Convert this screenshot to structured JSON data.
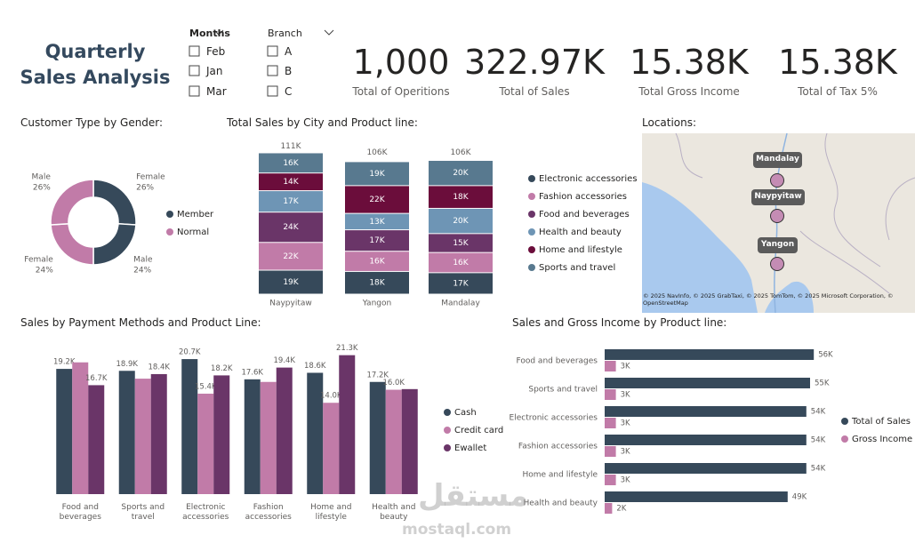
{
  "header": {
    "title": "Quarterly Sales Analysis"
  },
  "filters": [
    {
      "label": "Months",
      "options": [
        "Feb",
        "Jan",
        "Mar"
      ]
    },
    {
      "label": "Branch",
      "options": [
        "A",
        "B",
        "C"
      ]
    }
  ],
  "kpis": [
    {
      "value": "1,000",
      "label": "Total of Operitions"
    },
    {
      "value": "322.97K",
      "label": "Total of Sales"
    },
    {
      "value": "15.38K",
      "label": "Total Gross Income"
    },
    {
      "value": "15.38K",
      "label": "Total of Tax 5%"
    }
  ],
  "chart_data": [
    {
      "type": "pie",
      "donut": true,
      "title": "Customer Type by Gender:",
      "series": [
        {
          "name": "Member",
          "color": "#36495a",
          "categories": [
            "Female",
            "Male"
          ],
          "values": [
            26,
            24
          ],
          "value_labels": [
            "26%",
            "24%"
          ]
        },
        {
          "name": "Normal",
          "color": "#c17ba8",
          "categories": [
            "Female",
            "Male"
          ],
          "values": [
            24,
            26
          ],
          "value_labels": [
            "24%",
            "26%"
          ]
        }
      ]
    },
    {
      "type": "stacked_bar",
      "title": "Total Sales by City and Product line:",
      "categories": [
        "Naypyitaw",
        "Yangon",
        "Mandalay"
      ],
      "series": [
        {
          "name": "Electronic accessories",
          "color": "#36495a",
          "values": [
            19000,
            18000,
            17000
          ],
          "value_labels": [
            "19K",
            "18K",
            "17K"
          ]
        },
        {
          "name": "Fashion accessories",
          "color": "#c17ba8",
          "values": [
            22000,
            16000,
            16000
          ],
          "value_labels": [
            "22K",
            "16K",
            "16K"
          ]
        },
        {
          "name": "Food and beverages",
          "color": "#6a3568",
          "values": [
            24000,
            17000,
            15000
          ],
          "value_labels": [
            "24K",
            "17K",
            "15K"
          ]
        },
        {
          "name": "Health and beauty",
          "color": "#6e95b5",
          "values": [
            17000,
            13000,
            20000
          ],
          "value_labels": [
            "17K",
            "13K",
            "20K"
          ]
        },
        {
          "name": "Home and lifestyle",
          "color": "#6b0d3b",
          "values": [
            14000,
            22000,
            18000
          ],
          "value_labels": [
            "14K",
            "22K",
            "18K"
          ]
        },
        {
          "name": "Sports and travel",
          "color": "#58798f",
          "values": [
            16000,
            19000,
            20000
          ],
          "value_labels": [
            "16K",
            "19K",
            "20K"
          ]
        }
      ],
      "totals": [
        111000,
        106000,
        106000
      ],
      "total_labels": [
        "111K",
        "106K",
        "106K"
      ]
    },
    {
      "type": "bar",
      "title": "Sales by Payment Methods and Product Line:",
      "categories": [
        "Food and beverages",
        "Sports and travel",
        "Electronic accessories",
        "Fashion accessories",
        "Home and lifestyle",
        "Health and beauty"
      ],
      "series": [
        {
          "name": "Cash",
          "color": "#36495a",
          "values": [
            19200,
            18900,
            20700,
            17600,
            18600,
            17200
          ],
          "value_labels": [
            "19.2K",
            "18.9K",
            "20.7K",
            "17.6K",
            "18.6K",
            "17.2K"
          ]
        },
        {
          "name": "Credit card",
          "color": "#c17ba8",
          "values": [
            20200,
            17700,
            15400,
            17200,
            14000,
            16000
          ],
          "value_labels": [
            null,
            null,
            "15.4K",
            null,
            "14.0K",
            "16.0K"
          ]
        },
        {
          "name": "Ewallet",
          "color": "#6a3568",
          "values": [
            16700,
            18400,
            18200,
            19400,
            21300,
            16100
          ],
          "value_labels": [
            "16.7K",
            "18.4K",
            "18.2K",
            "19.4K",
            "21.3K",
            null
          ]
        }
      ]
    },
    {
      "type": "barh",
      "title": "Sales and Gross Income by Product line:",
      "categories": [
        "Food and beverages",
        "Sports and travel",
        "Electronic accessories",
        "Fashion accessories",
        "Home and lifestyle",
        "Health and beauty"
      ],
      "series": [
        {
          "name": "Total of Sales",
          "color": "#36495a",
          "values": [
            56000,
            55000,
            54000,
            54000,
            54000,
            49000
          ],
          "value_labels": [
            "56K",
            "55K",
            "54K",
            "54K",
            "54K",
            "49K"
          ]
        },
        {
          "name": "Gross Income",
          "color": "#c17ba8",
          "values": [
            3000,
            3000,
            3000,
            3000,
            3000,
            2000
          ],
          "value_labels": [
            "3K",
            "3K",
            "3K",
            "3K",
            "3K",
            "2K"
          ]
        }
      ]
    }
  ],
  "map": {
    "title": "Locations:",
    "places": [
      "Mandalay",
      "Naypyitaw",
      "Yangon"
    ],
    "attribution": "© 2025 NavInfo, © 2025 GrabTaxi, © 2025 TomTom, © 2025 Microsoft Corporation, © OpenStreetMap"
  },
  "watermark": {
    "arabic": "مستقل",
    "latin": "mostaql.com"
  }
}
